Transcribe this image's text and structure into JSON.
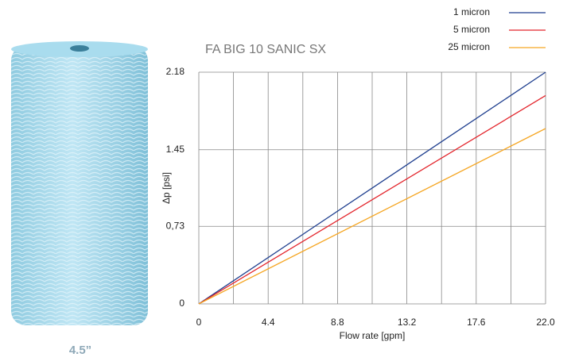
{
  "chart_data": {
    "type": "line",
    "title": "FA BIG 10 SANIC SX",
    "x_label": "Flow rate [gpm]",
    "y_label": "Δp [psi]",
    "image_caption": "4.5”",
    "x": [
      0,
      22
    ],
    "series": [
      {
        "name": "1 micron",
        "color": "#1f3f8f",
        "values": [
          0,
          2.18
        ]
      },
      {
        "name": "5 micron",
        "color": "#e3242b",
        "values": [
          0,
          1.96
        ]
      },
      {
        "name": "25 micron",
        "color": "#f5a623",
        "values": [
          0,
          1.65
        ]
      }
    ],
    "xlim": [
      0,
      22
    ],
    "ylim": [
      0,
      2.18
    ],
    "xticks": [
      0,
      {
        "value": 2.2,
        "label": null
      },
      4.4,
      {
        "value": 6.6,
        "label": null
      },
      8.8,
      {
        "value": 11,
        "label": null
      },
      13.2,
      {
        "value": 15.4,
        "label": null
      },
      17.6,
      {
        "value": 19.8,
        "label": null
      },
      {
        "value": 22,
        "label": "22.0"
      }
    ],
    "yticks": [
      0,
      {
        "value": 0.73,
        "label": "0,73"
      },
      1.45,
      2.18
    ],
    "grid": true,
    "legend": "top-right"
  }
}
